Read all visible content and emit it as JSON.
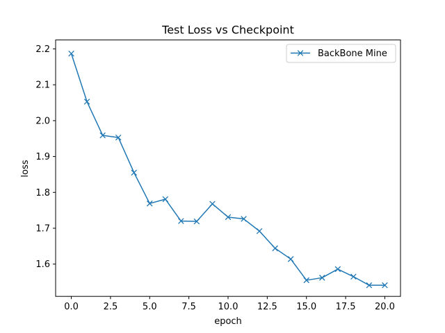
{
  "chart_data": {
    "type": "line",
    "title": "Test Loss vs Checkpoint",
    "xlabel": "epoch",
    "ylabel": "loss",
    "xlim": [
      -1,
      21
    ],
    "ylim": [
      1.51,
      2.225
    ],
    "xticks": [
      0.0,
      2.5,
      5.0,
      7.5,
      10.0,
      12.5,
      15.0,
      17.5,
      20.0
    ],
    "xtick_labels": [
      "0.0",
      "2.5",
      "5.0",
      "7.5",
      "10.0",
      "12.5",
      "15.0",
      "17.5",
      "20.0"
    ],
    "yticks": [
      1.6,
      1.7,
      1.8,
      1.9,
      2.0,
      2.1,
      2.2
    ],
    "ytick_labels": [
      "1.6",
      "1.7",
      "1.8",
      "1.9",
      "2.0",
      "2.1",
      "2.2"
    ],
    "grid": false,
    "legend_position": "top-right",
    "series": [
      {
        "name": "BackBone Mine",
        "color": "#1f77b4",
        "marker": "x",
        "x": [
          0,
          1,
          2,
          3,
          4,
          5,
          6,
          7,
          8,
          9,
          10,
          11,
          12,
          13,
          14,
          15,
          16,
          17,
          18,
          19,
          20
        ],
        "y": [
          2.187,
          2.053,
          1.959,
          1.953,
          1.855,
          1.769,
          1.781,
          1.72,
          1.719,
          1.768,
          1.731,
          1.726,
          1.692,
          1.644,
          1.614,
          1.555,
          1.562,
          1.586,
          1.565,
          1.541,
          1.541
        ]
      }
    ]
  }
}
